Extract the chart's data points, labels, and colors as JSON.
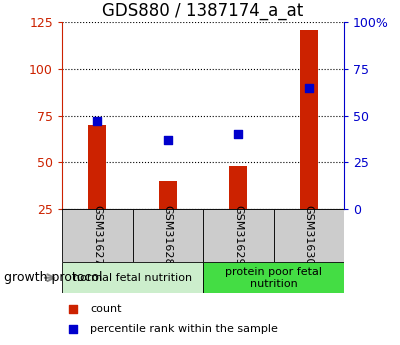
{
  "title": "GDS880 / 1387174_a_at",
  "samples": [
    "GSM31627",
    "GSM31628",
    "GSM31629",
    "GSM31630"
  ],
  "counts": [
    70,
    40,
    48,
    121
  ],
  "percentiles": [
    47,
    37,
    40,
    65
  ],
  "left_ylim": [
    25,
    125
  ],
  "right_ylim": [
    0,
    100
  ],
  "left_yticks": [
    25,
    50,
    75,
    100,
    125
  ],
  "right_yticks": [
    0,
    25,
    50,
    75,
    100
  ],
  "right_yticklabels": [
    "0",
    "25",
    "50",
    "75",
    "100%"
  ],
  "bar_color": "#cc2200",
  "dot_color": "#0000cc",
  "grid_color": "#000000",
  "left_axis_color": "#cc2200",
  "right_axis_color": "#0000cc",
  "sample_box_color": "#cccccc",
  "groups": [
    {
      "label": "normal fetal nutrition",
      "start": 0,
      "end": 2,
      "color": "#cceecc"
    },
    {
      "label": "protein poor fetal\nnutrition",
      "start": 2,
      "end": 4,
      "color": "#44dd44"
    }
  ],
  "group_label": "growth protocol",
  "legend_items": [
    {
      "label": "count",
      "color": "#cc2200"
    },
    {
      "label": "percentile rank within the sample",
      "color": "#0000cc"
    }
  ],
  "bar_width": 0.25,
  "dot_size": 35,
  "title_fontsize": 12,
  "tick_fontsize": 9,
  "sample_fontsize": 8,
  "group_fontsize": 8,
  "legend_fontsize": 8,
  "group_protocol_fontsize": 9
}
